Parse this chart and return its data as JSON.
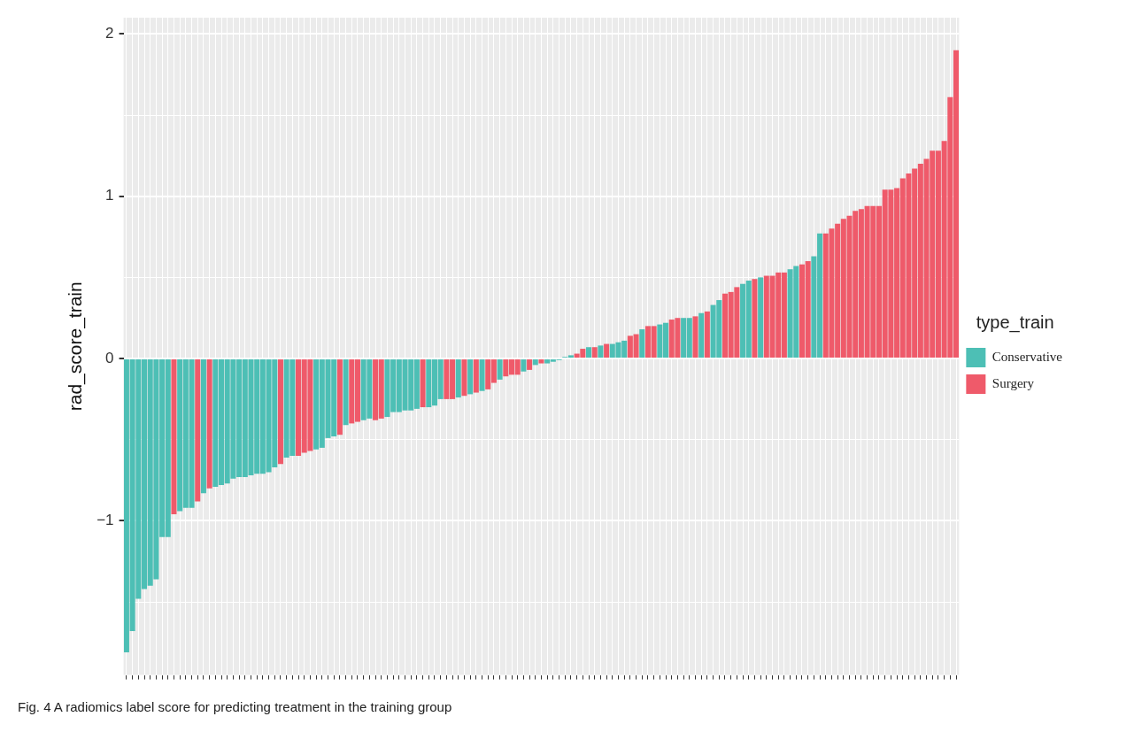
{
  "chart_data": {
    "type": "bar",
    "stacked": true,
    "ylabel": "rad_score_train",
    "legend_title": "type_train",
    "legend": "right",
    "grid": true,
    "annotations": [
      "Fig. 4  A radiomics label score for predicting treatment in the training group"
    ],
    "categories": [
      null,
      null,
      null,
      null,
      null,
      null,
      null,
      null,
      null,
      null,
      null,
      null,
      null,
      null,
      null,
      null,
      null,
      null,
      null,
      null,
      null,
      null,
      null,
      null,
      null,
      null,
      null,
      null,
      null,
      null,
      null,
      null,
      null,
      null,
      null,
      null,
      null,
      null,
      null,
      null,
      null,
      null,
      null,
      null,
      null,
      null,
      null,
      null,
      null,
      null,
      null,
      null,
      null,
      null,
      null,
      null,
      null,
      null,
      null,
      null,
      null,
      null,
      null,
      null,
      null,
      null,
      null,
      null,
      null,
      null,
      null,
      null,
      null,
      null,
      null,
      null,
      null,
      null,
      null,
      null,
      null,
      null,
      null,
      null,
      null,
      null,
      null,
      null,
      null,
      null,
      null,
      null,
      null,
      null,
      null,
      null,
      null,
      null,
      null,
      null,
      null,
      null,
      null,
      null,
      null,
      null,
      null,
      null,
      null,
      null,
      null,
      null,
      null,
      null,
      null,
      null,
      null,
      null,
      null,
      null,
      null,
      null,
      null,
      null,
      null,
      null,
      null,
      null,
      null,
      null,
      null,
      null,
      null,
      null,
      null,
      null,
      null,
      null,
      null,
      null,
      null
    ],
    "ylim": [
      -1.95,
      2.1
    ],
    "yticks": [
      -1,
      {
        "value": -1.5,
        "label": null
      },
      {
        "value": -0.5,
        "label": null
      },
      0,
      {
        "value": 0.5,
        "label": null
      },
      1,
      {
        "value": 1.5,
        "label": null
      },
      2
    ],
    "series": [
      {
        "name": "Conservative",
        "color": "#4dbfb5",
        "values": [
          -1.81,
          -1.68,
          -1.48,
          -1.42,
          -1.4,
          -1.36,
          -1.1,
          -1.1,
          null,
          -0.94,
          -0.92,
          -0.92,
          null,
          -0.83,
          null,
          -0.79,
          -0.78,
          -0.77,
          -0.74,
          -0.73,
          -0.73,
          -0.72,
          -0.71,
          -0.71,
          -0.7,
          -0.67,
          null,
          -0.61,
          -0.6,
          null,
          null,
          null,
          -0.56,
          -0.55,
          -0.49,
          -0.48,
          null,
          -0.41,
          null,
          null,
          -0.38,
          -0.37,
          null,
          null,
          -0.36,
          -0.33,
          -0.33,
          -0.32,
          -0.32,
          -0.31,
          null,
          -0.3,
          -0.29,
          -0.25,
          null,
          null,
          -0.24,
          null,
          -0.22,
          null,
          -0.2,
          null,
          null,
          -0.13,
          null,
          null,
          null,
          -0.08,
          null,
          -0.04,
          null,
          -0.03,
          -0.02,
          -0.01,
          0.01,
          0.02,
          null,
          null,
          0.07,
          null,
          0.08,
          null,
          0.09,
          0.1,
          0.11,
          null,
          null,
          0.18,
          null,
          null,
          0.21,
          0.22,
          null,
          null,
          0.25,
          0.25,
          null,
          0.28,
          null,
          0.33,
          0.36,
          null,
          null,
          null,
          0.46,
          0.48,
          null,
          0.5,
          null,
          null,
          null,
          null,
          0.55,
          0.57,
          null,
          null,
          0.63,
          0.77,
          null,
          null,
          null,
          null,
          null,
          null,
          null,
          null,
          null,
          null,
          null,
          null,
          null,
          null,
          null,
          null,
          null,
          null,
          null,
          null,
          null,
          null,
          null
        ]
      },
      {
        "name": "Surgery",
        "color": "#ef5a6a",
        "values": [
          null,
          null,
          null,
          null,
          null,
          null,
          null,
          null,
          -0.96,
          null,
          null,
          null,
          -0.88,
          null,
          -0.8,
          null,
          null,
          null,
          null,
          null,
          null,
          null,
          null,
          null,
          null,
          null,
          -0.65,
          null,
          null,
          -0.6,
          -0.58,
          -0.57,
          null,
          null,
          null,
          null,
          -0.47,
          null,
          -0.4,
          -0.39,
          null,
          null,
          -0.38,
          -0.37,
          null,
          null,
          null,
          null,
          null,
          null,
          -0.3,
          null,
          null,
          null,
          -0.25,
          -0.25,
          null,
          -0.23,
          null,
          -0.21,
          null,
          -0.19,
          -0.15,
          null,
          -0.11,
          -0.1,
          -0.1,
          null,
          -0.07,
          null,
          -0.03,
          null,
          null,
          null,
          null,
          null,
          0.03,
          0.06,
          null,
          0.07,
          null,
          0.09,
          null,
          null,
          null,
          0.14,
          0.15,
          null,
          0.2,
          0.2,
          null,
          null,
          0.24,
          0.25,
          null,
          null,
          0.26,
          null,
          0.29,
          null,
          null,
          0.4,
          0.41,
          0.44,
          null,
          null,
          0.49,
          null,
          0.51,
          0.51,
          0.53,
          0.53,
          null,
          null,
          0.58,
          0.6,
          null,
          null,
          0.77,
          0.8,
          0.83,
          0.86,
          0.88,
          0.91,
          0.92,
          0.94,
          0.94,
          0.94,
          1.04,
          1.04,
          1.05,
          1.11,
          1.14,
          1.17,
          1.2,
          1.23,
          1.28,
          1.28,
          1.34,
          1.61,
          1.9
        ]
      }
    ]
  }
}
